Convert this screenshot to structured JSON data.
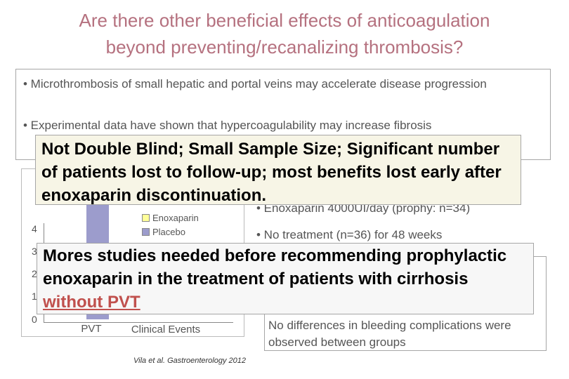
{
  "title": [
    "Are there other beneficial effects of anticoagulation",
    "beyond preventing/recanalizing thrombosis?"
  ],
  "bullets": [
    "• Microthrombosis of small hepatic and portal veins may accelerate disease progression",
    "• Experimental data have shown that hypercoagulability may increase fibrosis"
  ],
  "caveat": "Not Double Blind; Small Sample Size; Significant number of patients lost to follow-up; most benefits lost early after enoxaparin discontinuation.",
  "chart": {
    "yticks": [
      "4",
      "3",
      "2",
      "1",
      "0"
    ],
    "legend": [
      "Enoxaparin",
      "Placebo"
    ],
    "categories": [
      "PVT",
      "Clinical Events"
    ],
    "citation": "Vila et al. Gastroenterology 2012"
  },
  "study": [
    "• Enoxaparin 4000UI/day (prophy: n=34)",
    "• No treatment (n=36) for 48 weeks"
  ],
  "bleeding": "No differences in bleeding complications were observed between groups",
  "conclusion": {
    "text": "Mores studies needed before recommending prophylactic enoxaparin in the treatment of patients with cirrhosis",
    "emphasis": "without PVT"
  }
}
